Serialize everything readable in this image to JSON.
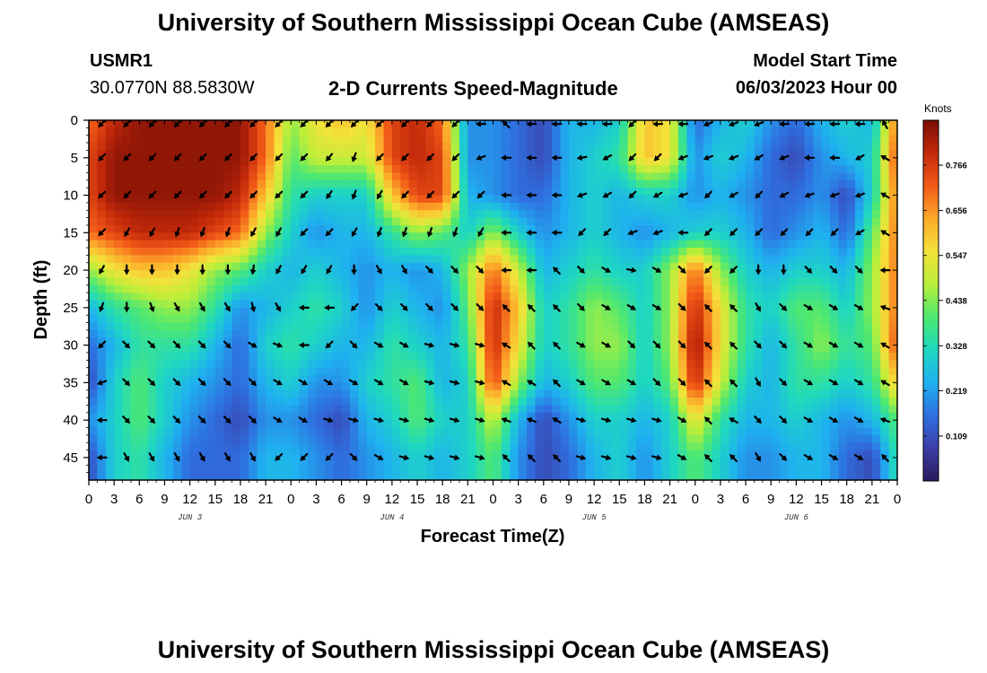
{
  "header": {
    "title": "University of Southern Mississippi Ocean Cube (AMSEAS)",
    "station": "USMR1",
    "coords": "30.0770N  88.5830W",
    "subtitle": "2-D Currents Speed-Magnitude",
    "model_label": "Model Start Time",
    "model_time": "06/03/2023 Hour 00"
  },
  "footer": {
    "title": "University of Southern Mississippi Ocean Cube (AMSEAS)"
  },
  "colors": {
    "frame": "#000000",
    "arrow": "#000000",
    "cmap": [
      "#2b1a5e",
      "#3b3ea8",
      "#2f70e0",
      "#1fb0f0",
      "#1fd8c0",
      "#4ee870",
      "#b8ee3a",
      "#f4e23a",
      "#fcaa2a",
      "#f25a18",
      "#c42a0a",
      "#7a0e05"
    ]
  },
  "chart_data": {
    "type": "heatmap",
    "title": "2-D Currents Speed-Magnitude",
    "xlabel": "Forecast Time(Z)",
    "ylabel": "Depth (ft)",
    "xlim": [
      0,
      96
    ],
    "ylim": [
      0,
      48
    ],
    "x_tick_values": [
      0,
      3,
      6,
      9,
      12,
      15,
      18,
      21,
      24,
      27,
      30,
      33,
      36,
      39,
      42,
      45,
      48,
      51,
      54,
      57,
      60,
      63,
      66,
      69,
      72,
      75,
      78,
      81,
      84,
      87,
      90,
      93,
      96
    ],
    "x_tick_labels": [
      "0",
      "3",
      "6",
      "9",
      "12",
      "15",
      "18",
      "21",
      "0",
      "3",
      "6",
      "9",
      "12",
      "15",
      "18",
      "21",
      "0",
      "3",
      "6",
      "9",
      "12",
      "15",
      "18",
      "21",
      "0",
      "3",
      "6",
      "9",
      "12",
      "15",
      "18",
      "21",
      "0"
    ],
    "day_labels": [
      {
        "label": "JUN 3",
        "x": 12
      },
      {
        "label": "JUN 4",
        "x": 36
      },
      {
        "label": "JUN 5",
        "x": 60
      },
      {
        "label": "JUN 6",
        "x": 84
      }
    ],
    "y_ticks": [
      0,
      5,
      10,
      15,
      20,
      25,
      30,
      35,
      40,
      45
    ],
    "colorbar": {
      "unit": "Knots",
      "min": 0.0,
      "max": 0.875,
      "ticks": [
        0.109,
        0.219,
        0.328,
        0.438,
        0.547,
        0.656,
        0.766
      ]
    },
    "speed_grid": {
      "times": [
        0,
        3,
        6,
        9,
        12,
        15,
        18,
        21,
        24,
        27,
        30,
        33,
        36,
        39,
        42,
        45,
        48,
        51,
        54,
        57,
        60,
        63,
        66,
        69,
        72,
        75,
        78,
        81,
        84,
        87,
        90,
        93,
        96
      ],
      "depths": [
        0,
        5,
        10,
        15,
        20,
        25,
        30,
        35,
        40,
        45,
        48
      ],
      "values": [
        [
          0.7,
          0.8,
          0.85,
          0.85,
          0.85,
          0.85,
          0.85,
          0.7,
          0.45,
          0.55,
          0.6,
          0.55,
          0.75,
          0.8,
          0.7,
          0.2,
          0.2,
          0.15,
          0.1,
          0.25,
          0.25,
          0.3,
          0.6,
          0.55,
          0.15,
          0.25,
          0.3,
          0.2,
          0.15,
          0.25,
          0.3,
          0.25,
          0.7
        ],
        [
          0.75,
          0.85,
          0.85,
          0.85,
          0.85,
          0.85,
          0.85,
          0.7,
          0.4,
          0.5,
          0.5,
          0.5,
          0.75,
          0.8,
          0.75,
          0.2,
          0.2,
          0.15,
          0.1,
          0.25,
          0.3,
          0.35,
          0.6,
          0.55,
          0.2,
          0.3,
          0.25,
          0.15,
          0.1,
          0.2,
          0.25,
          0.3,
          0.75
        ],
        [
          0.75,
          0.85,
          0.85,
          0.85,
          0.85,
          0.85,
          0.8,
          0.6,
          0.35,
          0.3,
          0.3,
          0.3,
          0.6,
          0.75,
          0.75,
          0.25,
          0.2,
          0.15,
          0.15,
          0.25,
          0.3,
          0.25,
          0.3,
          0.3,
          0.2,
          0.25,
          0.2,
          0.15,
          0.15,
          0.2,
          0.1,
          0.3,
          0.7
        ],
        [
          0.7,
          0.75,
          0.8,
          0.8,
          0.8,
          0.75,
          0.7,
          0.45,
          0.3,
          0.2,
          0.25,
          0.25,
          0.35,
          0.45,
          0.4,
          0.3,
          0.45,
          0.3,
          0.2,
          0.25,
          0.3,
          0.25,
          0.2,
          0.25,
          0.3,
          0.3,
          0.25,
          0.15,
          0.2,
          0.25,
          0.15,
          0.4,
          0.7
        ],
        [
          0.45,
          0.55,
          0.6,
          0.6,
          0.55,
          0.45,
          0.4,
          0.3,
          0.25,
          0.3,
          0.25,
          0.2,
          0.25,
          0.2,
          0.25,
          0.45,
          0.7,
          0.5,
          0.25,
          0.3,
          0.35,
          0.3,
          0.3,
          0.45,
          0.7,
          0.45,
          0.3,
          0.25,
          0.3,
          0.3,
          0.25,
          0.45,
          0.7
        ],
        [
          0.25,
          0.35,
          0.4,
          0.45,
          0.45,
          0.35,
          0.2,
          0.25,
          0.3,
          0.35,
          0.3,
          0.2,
          0.3,
          0.25,
          0.2,
          0.4,
          0.8,
          0.6,
          0.3,
          0.35,
          0.45,
          0.4,
          0.3,
          0.45,
          0.8,
          0.55,
          0.35,
          0.3,
          0.4,
          0.4,
          0.3,
          0.45,
          0.7
        ],
        [
          0.15,
          0.25,
          0.35,
          0.35,
          0.35,
          0.25,
          0.15,
          0.3,
          0.35,
          0.3,
          0.25,
          0.25,
          0.35,
          0.3,
          0.25,
          0.35,
          0.8,
          0.55,
          0.3,
          0.35,
          0.45,
          0.45,
          0.3,
          0.45,
          0.85,
          0.55,
          0.35,
          0.25,
          0.35,
          0.45,
          0.35,
          0.4,
          0.75
        ],
        [
          0.1,
          0.3,
          0.4,
          0.3,
          0.25,
          0.2,
          0.15,
          0.25,
          0.3,
          0.2,
          0.2,
          0.3,
          0.35,
          0.4,
          0.25,
          0.3,
          0.75,
          0.45,
          0.25,
          0.3,
          0.4,
          0.4,
          0.3,
          0.4,
          0.8,
          0.5,
          0.3,
          0.25,
          0.35,
          0.35,
          0.3,
          0.35,
          0.6
        ],
        [
          0.2,
          0.3,
          0.4,
          0.3,
          0.2,
          0.15,
          0.1,
          0.2,
          0.2,
          0.15,
          0.1,
          0.25,
          0.3,
          0.4,
          0.3,
          0.3,
          0.5,
          0.25,
          0.1,
          0.2,
          0.3,
          0.3,
          0.25,
          0.3,
          0.55,
          0.35,
          0.25,
          0.25,
          0.3,
          0.25,
          0.2,
          0.25,
          0.4
        ],
        [
          0.1,
          0.3,
          0.35,
          0.25,
          0.15,
          0.15,
          0.15,
          0.25,
          0.25,
          0.2,
          0.15,
          0.2,
          0.25,
          0.3,
          0.25,
          0.3,
          0.4,
          0.2,
          0.1,
          0.15,
          0.25,
          0.3,
          0.2,
          0.3,
          0.4,
          0.3,
          0.2,
          0.2,
          0.25,
          0.25,
          0.15,
          0.1,
          0.35
        ],
        [
          0.1,
          0.3,
          0.35,
          0.25,
          0.15,
          0.15,
          0.15,
          0.25,
          0.25,
          0.2,
          0.15,
          0.2,
          0.25,
          0.3,
          0.25,
          0.3,
          0.4,
          0.2,
          0.1,
          0.15,
          0.25,
          0.3,
          0.2,
          0.3,
          0.4,
          0.3,
          0.2,
          0.2,
          0.25,
          0.25,
          0.15,
          0.1,
          0.35
        ]
      ]
    },
    "vectors": {
      "times": [
        1.5,
        4.5,
        7.5,
        10.5,
        13.5,
        16.5,
        19.5,
        22.5,
        25.5,
        28.5,
        31.5,
        34.5,
        37.5,
        40.5,
        43.5,
        46.5,
        49.5,
        52.5,
        55.5,
        58.5,
        61.5,
        64.5,
        67.5,
        70.5,
        73.5,
        76.5,
        79.5,
        82.5,
        85.5,
        88.5,
        91.5,
        94.5
      ],
      "depths": [
        0.5,
        5,
        10,
        15,
        20,
        25,
        30,
        35,
        40,
        45
      ],
      "directions_deg": [
        [
          225,
          225,
          225,
          225,
          225,
          225,
          225,
          225,
          225,
          225,
          225,
          225,
          225,
          225,
          225,
          180,
          135,
          180,
          180,
          180,
          180,
          225,
          180,
          180,
          200,
          200,
          200,
          180,
          180,
          180,
          180,
          120
        ],
        [
          225,
          225,
          225,
          225,
          225,
          225,
          225,
          225,
          225,
          230,
          250,
          225,
          225,
          225,
          225,
          200,
          180,
          180,
          180,
          190,
          210,
          225,
          225,
          200,
          200,
          200,
          210,
          200,
          180,
          180,
          210,
          150
        ],
        [
          225,
          225,
          225,
          225,
          225,
          225,
          225,
          225,
          225,
          235,
          250,
          240,
          225,
          225,
          225,
          225,
          180,
          180,
          180,
          200,
          210,
          225,
          210,
          200,
          225,
          210,
          225,
          210,
          200,
          200,
          200,
          150
        ],
        [
          225,
          240,
          240,
          250,
          250,
          250,
          240,
          240,
          225,
          225,
          240,
          250,
          250,
          250,
          250,
          240,
          180,
          180,
          180,
          225,
          225,
          200,
          200,
          180,
          225,
          225,
          225,
          225,
          225,
          225,
          210,
          150
        ],
        [
          240,
          270,
          270,
          270,
          270,
          270,
          260,
          240,
          240,
          240,
          270,
          300,
          300,
          315,
          315,
          315,
          180,
          180,
          135,
          315,
          330,
          350,
          330,
          315,
          225,
          225,
          270,
          270,
          315,
          315,
          315,
          180
        ],
        [
          250,
          270,
          290,
          300,
          300,
          300,
          285,
          300,
          180,
          180,
          225,
          315,
          315,
          315,
          315,
          315,
          135,
          135,
          135,
          315,
          330,
          330,
          330,
          315,
          135,
          135,
          300,
          315,
          330,
          330,
          330,
          160
        ],
        [
          225,
          315,
          315,
          315,
          315,
          315,
          330,
          340,
          180,
          225,
          315,
          330,
          330,
          345,
          345,
          345,
          150,
          135,
          135,
          330,
          330,
          315,
          315,
          315,
          135,
          135,
          315,
          315,
          330,
          330,
          330,
          150
        ],
        [
          200,
          315,
          315,
          315,
          315,
          315,
          315,
          330,
          330,
          330,
          330,
          330,
          330,
          345,
          345,
          345,
          150,
          150,
          135,
          330,
          330,
          330,
          315,
          315,
          135,
          135,
          300,
          315,
          330,
          330,
          330,
          150
        ],
        [
          180,
          315,
          315,
          315,
          315,
          315,
          315,
          330,
          330,
          345,
          345,
          345,
          345,
          345,
          345,
          345,
          160,
          160,
          150,
          345,
          345,
          345,
          345,
          330,
          135,
          150,
          315,
          315,
          330,
          330,
          330,
          160
        ],
        [
          180,
          300,
          300,
          300,
          300,
          300,
          300,
          225,
          225,
          225,
          315,
          330,
          345,
          345,
          345,
          345,
          135,
          135,
          135,
          345,
          345,
          345,
          345,
          330,
          135,
          135,
          300,
          315,
          330,
          330,
          330,
          135
        ]
      ]
    }
  }
}
